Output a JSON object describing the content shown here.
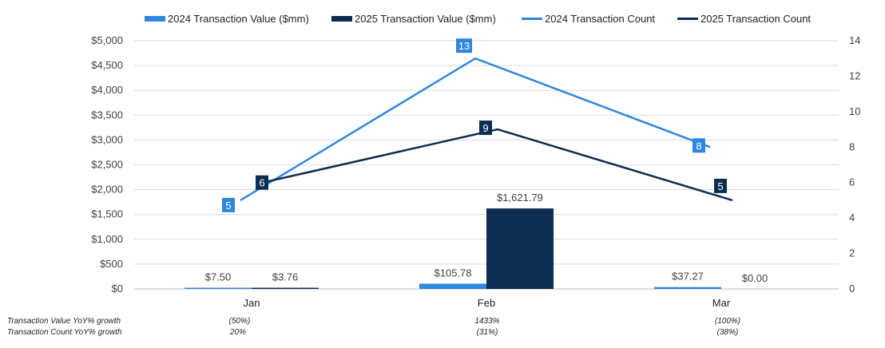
{
  "colors": {
    "bar2024": "#2e86de",
    "bar2025": "#0b2d52",
    "line2024": "#2e86de",
    "line2025": "#0b2d52",
    "grid": "#d9d9d9",
    "axis": "#bfbfbf"
  },
  "legend": [
    {
      "label": "2024 Transaction Value ($mm)",
      "kind": "bar",
      "color": "#2e86de"
    },
    {
      "label": "2025 Transaction Value ($mm)",
      "kind": "bar",
      "color": "#0b2d52"
    },
    {
      "label": "2024 Transaction Count",
      "kind": "line",
      "color": "#2e86de"
    },
    {
      "label": "2025 Transaction Count",
      "kind": "line",
      "color": "#0b2d52"
    }
  ],
  "chart_data": {
    "type": "bar",
    "categories": [
      "Jan",
      "Feb",
      "Mar"
    ],
    "series": [
      {
        "name": "2024 Transaction Value ($mm)",
        "type": "bar",
        "axis": "left",
        "values": [
          7.5,
          105.78,
          37.27
        ],
        "labels": [
          "$7.50",
          "$105.78",
          "$37.27"
        ]
      },
      {
        "name": "2025 Transaction Value ($mm)",
        "type": "bar",
        "axis": "left",
        "values": [
          3.76,
          1621.79,
          0.0
        ],
        "labels": [
          "$3.76",
          "$1,621.79",
          "$0.00"
        ]
      },
      {
        "name": "2024 Transaction Count",
        "type": "line",
        "axis": "right",
        "values": [
          5,
          13,
          8
        ],
        "labels": [
          "5",
          "13",
          "8"
        ]
      },
      {
        "name": "2025 Transaction Count",
        "type": "line",
        "axis": "right",
        "values": [
          6,
          9,
          5
        ],
        "labels": [
          "6",
          "9",
          "5"
        ]
      }
    ],
    "left_axis": {
      "ylim": [
        0,
        5000
      ],
      "ticks": [
        0,
        500,
        1000,
        1500,
        2000,
        2500,
        3000,
        3500,
        4000,
        4500,
        5000
      ],
      "tick_labels": [
        "$0",
        "$500",
        "$1,000",
        "$1,500",
        "$2,000",
        "$2,500",
        "$3,000",
        "$3,500",
        "$4,000",
        "$4,500",
        "$5,000"
      ]
    },
    "right_axis": {
      "ylim": [
        0,
        14
      ],
      "ticks": [
        0,
        2,
        4,
        6,
        8,
        10,
        12,
        14
      ],
      "tick_labels": [
        "0",
        "2",
        "4",
        "6",
        "8",
        "10",
        "12",
        "14"
      ]
    },
    "grid": true,
    "legend_position": "top"
  },
  "footer": {
    "value_growth": {
      "label": "Transaction Value YoY% growth",
      "values": [
        "(50%)",
        "1433%",
        "(100%)"
      ]
    },
    "count_growth": {
      "label": "Transaction Count YoY% growth",
      "values": [
        "20%",
        "(31%)",
        "(38%)"
      ]
    }
  }
}
